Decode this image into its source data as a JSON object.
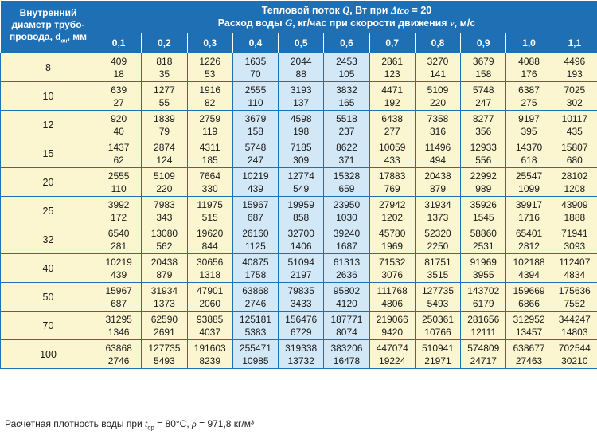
{
  "header": {
    "corner": [
      "Внутренний",
      "диаметр трубо-",
      "провода, d",
      "вн",
      ", мм"
    ],
    "title1_pre": "Тепловой поток ",
    "title1_q": "Q",
    "title1_mid": ", Вт при ",
    "title1_delta": "Δtco",
    "title1_post": " = 20",
    "title2_pre": "Расход воды ",
    "title2_g": "G",
    "title2_mid": ", кг/час при скорости движения ",
    "title2_v": "v",
    "title2_post": ", м/с",
    "speeds": [
      "0,1",
      "0,2",
      "0,3",
      "0,4",
      "0,5",
      "0,6",
      "0,7",
      "0,8",
      "0,9",
      "1,0",
      "1,1"
    ]
  },
  "rows": [
    {
      "d": "8",
      "q": [
        "409",
        "818",
        "1226",
        "1635",
        "2044",
        "2453",
        "2861",
        "3270",
        "3679",
        "4088",
        "4496"
      ],
      "g": [
        "18",
        "35",
        "53",
        "70",
        "88",
        "105",
        "123",
        "141",
        "158",
        "176",
        "193"
      ]
    },
    {
      "d": "10",
      "q": [
        "639",
        "1277",
        "1916",
        "2555",
        "3193",
        "3832",
        "4471",
        "5109",
        "5748",
        "6387",
        "7025"
      ],
      "g": [
        "27",
        "55",
        "82",
        "110",
        "137",
        "165",
        "192",
        "220",
        "247",
        "275",
        "302"
      ]
    },
    {
      "d": "12",
      "q": [
        "920",
        "1839",
        "2759",
        "3679",
        "4598",
        "5518",
        "6438",
        "7358",
        "8277",
        "9197",
        "10117"
      ],
      "g": [
        "40",
        "79",
        "119",
        "158",
        "198",
        "237",
        "277",
        "316",
        "356",
        "395",
        "435"
      ]
    },
    {
      "d": "15",
      "q": [
        "1437",
        "2874",
        "4311",
        "5748",
        "7185",
        "8622",
        "10059",
        "11496",
        "12933",
        "14370",
        "15807"
      ],
      "g": [
        "62",
        "124",
        "185",
        "247",
        "309",
        "371",
        "433",
        "494",
        "556",
        "618",
        "680"
      ]
    },
    {
      "d": "20",
      "q": [
        "2555",
        "5109",
        "7664",
        "10219",
        "12774",
        "15328",
        "17883",
        "20438",
        "22992",
        "25547",
        "28102"
      ],
      "g": [
        "110",
        "220",
        "330",
        "439",
        "549",
        "659",
        "769",
        "879",
        "989",
        "1099",
        "1208"
      ]
    },
    {
      "d": "25",
      "q": [
        "3992",
        "7983",
        "11975",
        "15967",
        "19959",
        "23950",
        "27942",
        "31934",
        "35926",
        "39917",
        "43909"
      ],
      "g": [
        "172",
        "343",
        "515",
        "687",
        "858",
        "1030",
        "1202",
        "1373",
        "1545",
        "1716",
        "1888"
      ]
    },
    {
      "d": "32",
      "q": [
        "6540",
        "13080",
        "19620",
        "26160",
        "32700",
        "39240",
        "45780",
        "52320",
        "58860",
        "65401",
        "71941"
      ],
      "g": [
        "281",
        "562",
        "844",
        "1125",
        "1406",
        "1687",
        "1969",
        "2250",
        "2531",
        "2812",
        "3093"
      ]
    },
    {
      "d": "40",
      "q": [
        "10219",
        "20438",
        "30656",
        "40875",
        "51094",
        "61313",
        "71532",
        "81751",
        "91969",
        "102188",
        "112407"
      ],
      "g": [
        "439",
        "879",
        "1318",
        "1758",
        "2197",
        "2636",
        "3076",
        "3515",
        "3955",
        "4394",
        "4834"
      ]
    },
    {
      "d": "50",
      "q": [
        "15967",
        "31934",
        "47901",
        "63868",
        "79835",
        "95802",
        "111768",
        "127735",
        "143702",
        "159669",
        "175636"
      ],
      "g": [
        "687",
        "1373",
        "2060",
        "2746",
        "3433",
        "4120",
        "4806",
        "5493",
        "6179",
        "6866",
        "7552"
      ]
    },
    {
      "d": "70",
      "q": [
        "31295",
        "62590",
        "93885",
        "125181",
        "156476",
        "187771",
        "219066",
        "250361",
        "281656",
        "312952",
        "344247"
      ],
      "g": [
        "1346",
        "2691",
        "4037",
        "5383",
        "6729",
        "8074",
        "9420",
        "10766",
        "12111",
        "13457",
        "14803"
      ]
    },
    {
      "d": "100",
      "q": [
        "63868",
        "127735",
        "191603",
        "255471",
        "319338",
        "383206",
        "447074",
        "510941",
        "574809",
        "638677",
        "702544"
      ],
      "g": [
        "2746",
        "5493",
        "8239",
        "10985",
        "13732",
        "16478",
        "19224",
        "21971",
        "24717",
        "27463",
        "30210"
      ]
    }
  ],
  "highlight_columns": [
    3,
    4,
    5
  ],
  "footer": {
    "pre": "Расчетная плотность воды при ",
    "t": "t",
    "t_sub": "ср",
    "mid": " = 80°C, ",
    "rho": "ρ",
    "post": " = 971,8 кг/м³"
  },
  "colors": {
    "header": "#1f6fb5",
    "cell": "#fbf6cf",
    "highlight": "#d3e8f7"
  }
}
